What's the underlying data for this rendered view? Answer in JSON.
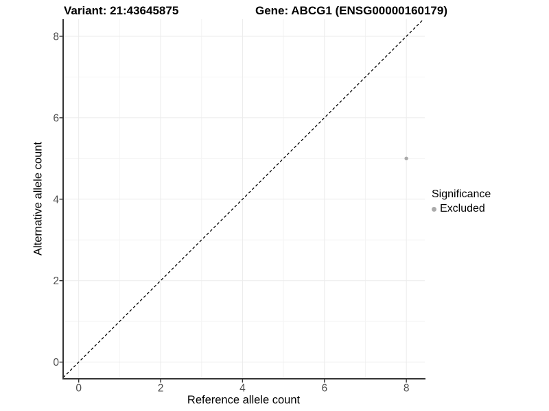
{
  "chart_data": {
    "type": "scatter",
    "titles": {
      "variant": "Variant: 21:43645875",
      "gene": "Gene: ABCG1 (ENSG00000160179)"
    },
    "xlabel": "Reference allele count",
    "ylabel": "Alternative allele count",
    "xlim": [
      -0.38,
      8.45
    ],
    "ylim": [
      -0.41,
      8.42
    ],
    "x_major_ticks": [
      0,
      2,
      4,
      6,
      8
    ],
    "y_major_ticks": [
      0,
      2,
      4,
      6,
      8
    ],
    "x_minor_ticks": [
      1,
      3,
      5,
      7
    ],
    "y_minor_ticks": [
      1,
      3,
      5,
      7
    ],
    "grid": true,
    "points": [
      {
        "x": 8,
        "y": 5,
        "series": "Excluded"
      }
    ],
    "reference_line": {
      "type": "identity",
      "style": "dashed",
      "color": "#000000"
    },
    "legend": {
      "title": "Significance",
      "position": "right",
      "items": [
        {
          "label": "Excluded",
          "color": "#aaaaaa"
        }
      ]
    },
    "colors": {
      "point": "#aaaaaa",
      "axis": "#333333",
      "tick_label": "#4d4d4d",
      "grid_major": "#ebebeb",
      "grid_minor": "#f4f4f4",
      "background": "#ffffff"
    }
  }
}
